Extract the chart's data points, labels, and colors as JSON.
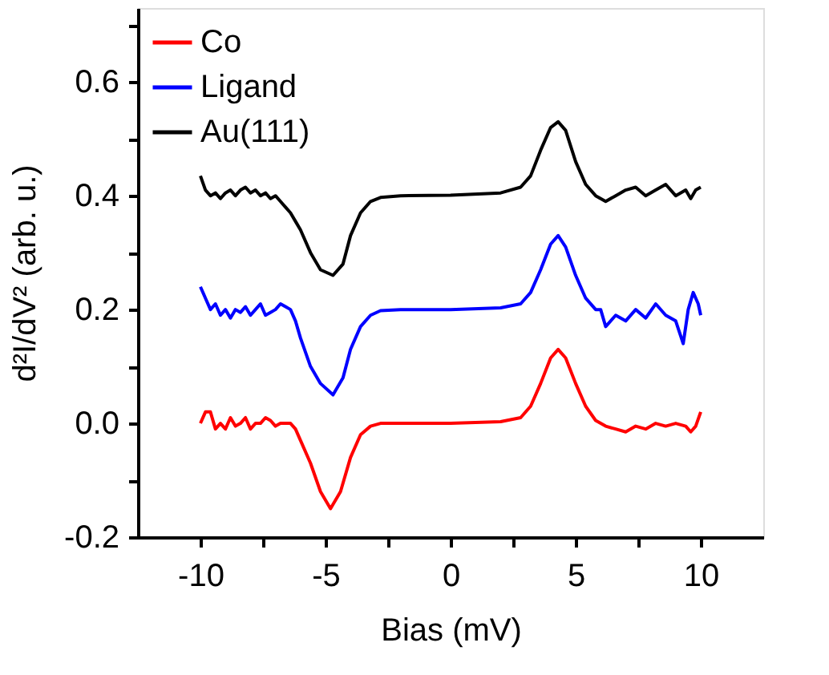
{
  "chart_data": {
    "type": "line",
    "xlabel": "Bias (mV)",
    "ylabel": "d²I/dV² (arb. u.)",
    "xlim": [
      -12.5,
      12.5
    ],
    "xticks": [
      -10,
      {
        "value": -7.5,
        "label": null
      },
      -5,
      {
        "value": -2.5,
        "label": null
      },
      0,
      {
        "value": 2.5,
        "label": null
      },
      5,
      {
        "value": 7.5,
        "label": null
      },
      10
    ],
    "ylim": [
      -0.2,
      0.73
    ],
    "yticks": [
      -0.2,
      {
        "value": -0.1,
        "label": null
      },
      {
        "value": 0,
        "label": "0.0"
      },
      {
        "value": 0.1,
        "label": null
      },
      0.2,
      {
        "value": 0.3,
        "label": null
      },
      0.4,
      {
        "value": 0.5,
        "label": null
      },
      0.6,
      {
        "value": 0.7,
        "label": null
      }
    ],
    "grid": false,
    "legend": "top left",
    "line_style": "solid",
    "marker": "none",
    "series": [
      {
        "name": "Co",
        "color": "#ff0000",
        "x": [
          -10,
          -9.8,
          -9.6,
          -9.4,
          -9.2,
          -9.0,
          -8.8,
          -8.6,
          -8.4,
          -8.2,
          -8.0,
          -7.8,
          -7.6,
          -7.4,
          -7.2,
          -7.0,
          -6.8,
          -6.6,
          -6.4,
          -6.2,
          -6.0,
          -5.6,
          -5.2,
          -4.8,
          -4.4,
          -4.0,
          -3.6,
          -3.2,
          -2.8,
          -2.0,
          0,
          2.0,
          2.8,
          3.2,
          3.6,
          4.0,
          4.3,
          4.6,
          5.0,
          5.4,
          5.8,
          6.0,
          6.2,
          6.6,
          7.0,
          7.4,
          7.8,
          8.2,
          8.6,
          9.0,
          9.4,
          9.6,
          9.8,
          10
        ],
        "values": [
          0.0,
          0.02,
          0.02,
          -0.01,
          0.0,
          -0.01,
          0.01,
          -0.005,
          0.0,
          0.01,
          -0.01,
          0.0,
          0.0,
          0.01,
          0.005,
          -0.005,
          0.0,
          0.0,
          0.0,
          -0.01,
          -0.03,
          -0.07,
          -0.12,
          -0.15,
          -0.12,
          -0.06,
          -0.02,
          -0.005,
          0.0,
          0.0,
          0.0,
          0.003,
          0.01,
          0.03,
          0.07,
          0.115,
          0.13,
          0.115,
          0.07,
          0.03,
          0.005,
          0.0,
          -0.005,
          -0.01,
          -0.015,
          -0.005,
          -0.01,
          0.0,
          -0.005,
          0.0,
          -0.005,
          -0.015,
          -0.005,
          0.02
        ]
      },
      {
        "name": "Ligand",
        "color": "#0000ff",
        "x": [
          -10,
          -9.8,
          -9.6,
          -9.4,
          -9.2,
          -9.0,
          -8.8,
          -8.6,
          -8.4,
          -8.2,
          -8.0,
          -7.8,
          -7.6,
          -7.4,
          -7.2,
          -7.0,
          -6.8,
          -6.6,
          -6.4,
          -6.2,
          -6.0,
          -5.6,
          -5.2,
          -4.7,
          -4.3,
          -4.0,
          -3.6,
          -3.2,
          -2.8,
          -2.0,
          0,
          2.0,
          2.8,
          3.2,
          3.6,
          4.0,
          4.3,
          4.6,
          5.0,
          5.4,
          5.8,
          6.0,
          6.2,
          6.6,
          7.0,
          7.4,
          7.8,
          8.2,
          8.6,
          9.0,
          9.3,
          9.5,
          9.7,
          9.9,
          10
        ],
        "values": [
          0.24,
          0.22,
          0.2,
          0.21,
          0.19,
          0.2,
          0.185,
          0.2,
          0.195,
          0.205,
          0.19,
          0.2,
          0.21,
          0.19,
          0.195,
          0.2,
          0.21,
          0.205,
          0.2,
          0.18,
          0.15,
          0.1,
          0.07,
          0.05,
          0.08,
          0.13,
          0.17,
          0.19,
          0.198,
          0.2,
          0.2,
          0.203,
          0.21,
          0.23,
          0.27,
          0.315,
          0.33,
          0.31,
          0.26,
          0.22,
          0.2,
          0.2,
          0.17,
          0.19,
          0.18,
          0.2,
          0.185,
          0.21,
          0.19,
          0.18,
          0.14,
          0.2,
          0.23,
          0.21,
          0.19
        ]
      },
      {
        "name": "Au(111)",
        "color": "#000000",
        "x": [
          -10,
          -9.8,
          -9.6,
          -9.4,
          -9.2,
          -9.0,
          -8.8,
          -8.6,
          -8.4,
          -8.2,
          -8.0,
          -7.8,
          -7.6,
          -7.4,
          -7.2,
          -7.0,
          -6.8,
          -6.6,
          -6.4,
          -6.2,
          -6.0,
          -5.6,
          -5.2,
          -4.7,
          -4.3,
          -4.0,
          -3.6,
          -3.2,
          -2.8,
          -2.0,
          0,
          2.0,
          2.8,
          3.2,
          3.6,
          4.0,
          4.3,
          4.6,
          5.0,
          5.4,
          5.8,
          6.0,
          6.2,
          6.6,
          7.0,
          7.4,
          7.8,
          8.2,
          8.6,
          9.0,
          9.4,
          9.6,
          9.8,
          10
        ],
        "values": [
          0.435,
          0.41,
          0.4,
          0.405,
          0.395,
          0.405,
          0.41,
          0.4,
          0.41,
          0.415,
          0.405,
          0.41,
          0.4,
          0.405,
          0.395,
          0.4,
          0.39,
          0.38,
          0.37,
          0.355,
          0.34,
          0.3,
          0.27,
          0.26,
          0.28,
          0.33,
          0.37,
          0.39,
          0.397,
          0.4,
          0.401,
          0.405,
          0.415,
          0.435,
          0.48,
          0.52,
          0.53,
          0.515,
          0.46,
          0.42,
          0.4,
          0.395,
          0.39,
          0.4,
          0.41,
          0.415,
          0.4,
          0.41,
          0.42,
          0.4,
          0.41,
          0.395,
          0.41,
          0.415
        ]
      }
    ]
  }
}
